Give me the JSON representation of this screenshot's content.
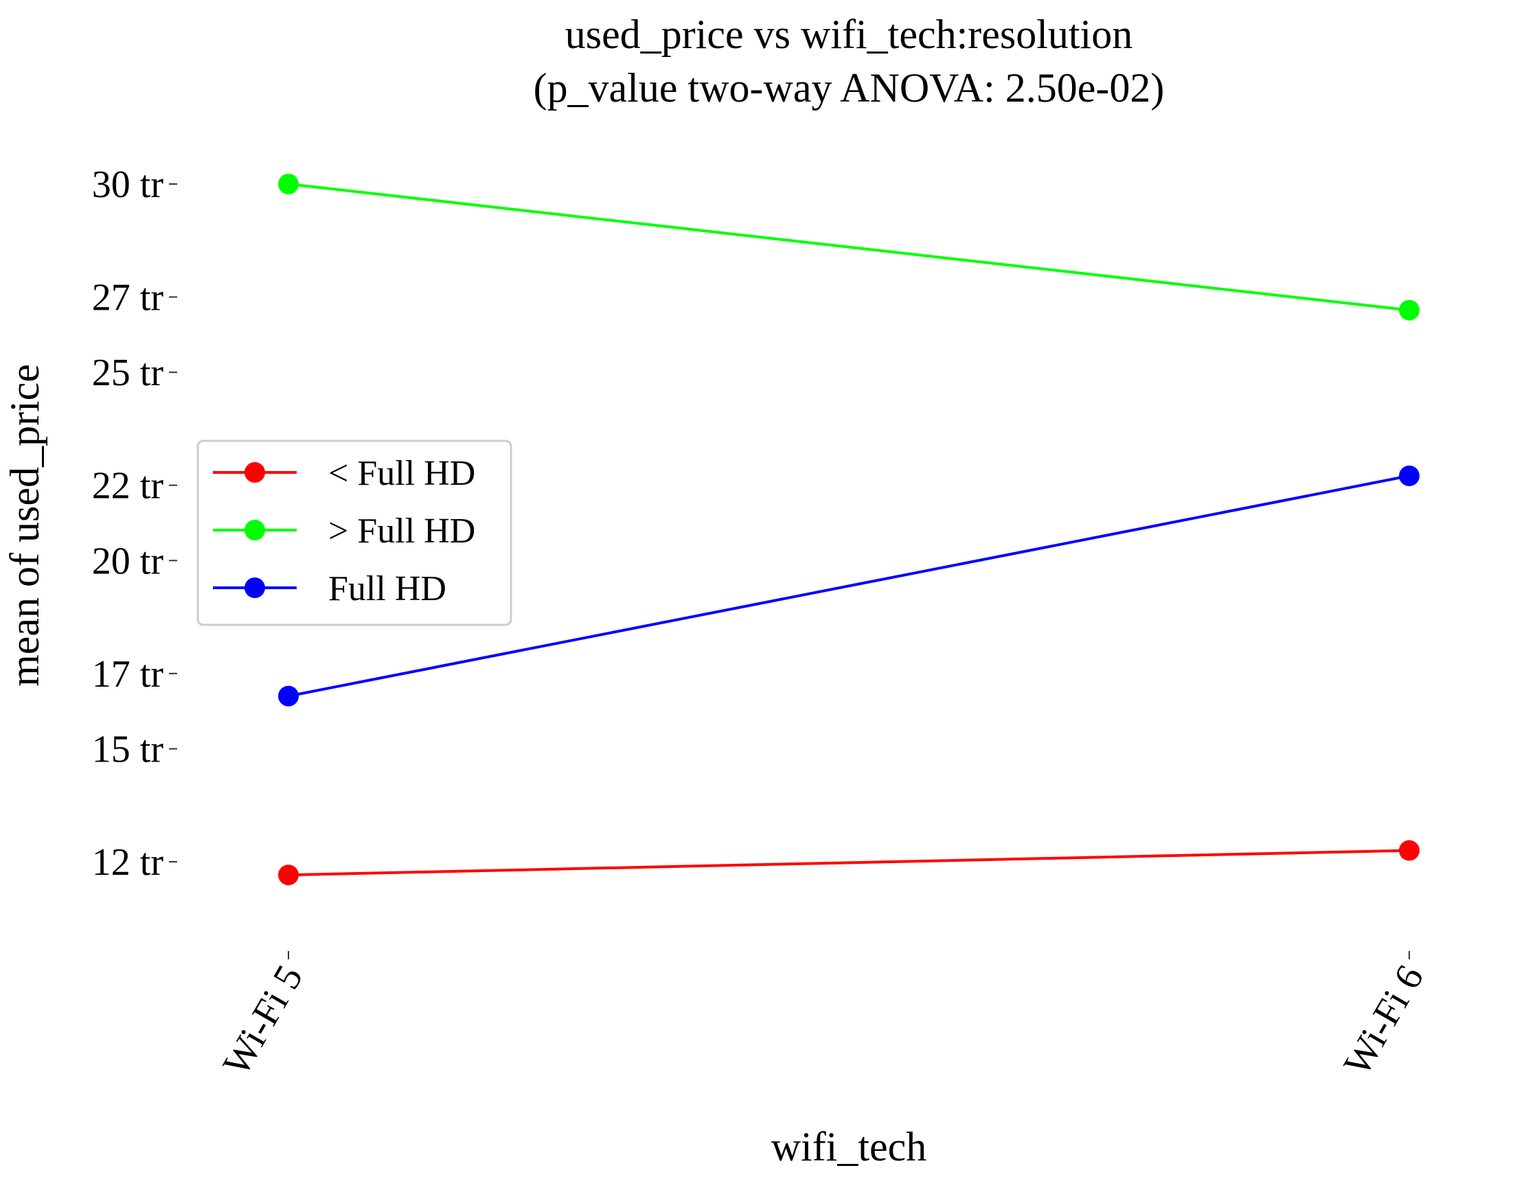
{
  "chart_data": {
    "type": "line",
    "title": "used_price vs wifi_tech:resolution",
    "subtitle": "(p_value two-way ANOVA: 2.50e-02)",
    "xlabel": "wifi_tech",
    "ylabel": "mean of used_price",
    "categories": [
      "Wi-Fi 5",
      "Wi-Fi 6"
    ],
    "ylim": [
      10000000,
      31000000
    ],
    "yticks": [
      {
        "value": 12000000,
        "label": "12 tr"
      },
      {
        "value": 15000000,
        "label": "15 tr"
      },
      {
        "value": 17000000,
        "label": "17 tr"
      },
      {
        "value": 20000000,
        "label": "20 tr"
      },
      {
        "value": 22000000,
        "label": "22 tr"
      },
      {
        "value": 25000000,
        "label": "25 tr"
      },
      {
        "value": 27000000,
        "label": "27 tr"
      },
      {
        "value": 30000000,
        "label": "30 tr"
      }
    ],
    "series": [
      {
        "name": "< Full HD",
        "color": "#ff0000",
        "values": [
          11650000,
          12300000
        ]
      },
      {
        "name": "> Full HD",
        "color": "#00ff00",
        "values": [
          30000000,
          26650000
        ]
      },
      {
        "name": "Full HD",
        "color": "#0000ff",
        "values": [
          16400000,
          22250000
        ]
      }
    ],
    "legend_position": "center-left",
    "grid": false
  }
}
